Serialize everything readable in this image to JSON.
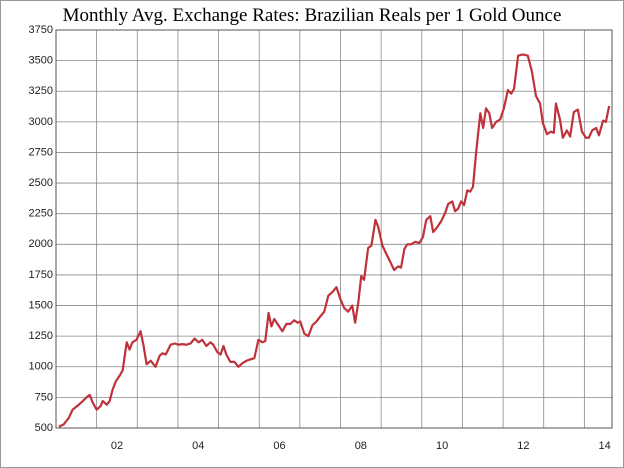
{
  "chart_data": {
    "type": "line",
    "title": "Monthly Avg. Exchange Rates: Brazilian Reals per 1 Gold Ounce",
    "x": [
      2001.07,
      2001.19,
      2001.31,
      2001.41,
      2001.56,
      2001.66,
      2001.75,
      2001.83,
      2001.9,
      2002.0,
      2002.1,
      2002.15,
      2002.25,
      2002.32,
      2002.39,
      2002.47,
      2002.57,
      2002.64,
      2002.74,
      2002.81,
      2002.88,
      2002.98,
      2003.08,
      2003.15,
      2003.23,
      2003.33,
      2003.45,
      2003.55,
      2003.62,
      2003.7,
      2003.82,
      2003.92,
      2004.01,
      2004.11,
      2004.21,
      2004.31,
      2004.41,
      2004.51,
      2004.6,
      2004.7,
      2004.8,
      2004.87,
      2004.97,
      2005.05,
      2005.12,
      2005.19,
      2005.29,
      2005.39,
      2005.49,
      2005.59,
      2005.69,
      2005.78,
      2005.88,
      2005.98,
      2006.08,
      2006.15,
      2006.23,
      2006.3,
      2006.37,
      2006.47,
      2006.57,
      2006.67,
      2006.77,
      2006.86,
      2006.94,
      2007.01,
      2007.11,
      2007.21,
      2007.31,
      2007.41,
      2007.5,
      2007.6,
      2007.7,
      2007.8,
      2007.9,
      2008.0,
      2008.09,
      2008.19,
      2008.29,
      2008.36,
      2008.44,
      2008.51,
      2008.58,
      2008.68,
      2008.76,
      2008.86,
      2008.93,
      2009.03,
      2009.13,
      2009.22,
      2009.32,
      2009.42,
      2009.49,
      2009.57,
      2009.64,
      2009.74,
      2009.84,
      2009.94,
      2010.03,
      2010.11,
      2010.21,
      2010.28,
      2010.38,
      2010.48,
      2010.58,
      2010.65,
      2010.75,
      2010.82,
      2010.89,
      2010.97,
      2011.04,
      2011.12,
      2011.19,
      2011.26,
      2011.34,
      2011.44,
      2011.51,
      2011.58,
      2011.66,
      2011.73,
      2011.83,
      2011.93,
      2012.02,
      2012.12,
      2012.2,
      2012.27,
      2012.37,
      2012.49,
      2012.61,
      2012.71,
      2012.81,
      2012.91,
      2012.98,
      2013.08,
      2013.18,
      2013.25,
      2013.3,
      2013.4,
      2013.47,
      2013.57,
      2013.65,
      2013.74,
      2013.84,
      2013.94,
      2014.04,
      2014.11,
      2014.19,
      2014.29,
      2014.36,
      2014.46,
      2014.53,
      2014.61
    ],
    "values": [
      510,
      530,
      580,
      650,
      690,
      720,
      750,
      770,
      710,
      650,
      680,
      720,
      690,
      720,
      810,
      880,
      930,
      970,
      1200,
      1140,
      1200,
      1220,
      1290,
      1180,
      1020,
      1050,
      1000,
      1090,
      1110,
      1100,
      1180,
      1190,
      1180,
      1185,
      1180,
      1190,
      1230,
      1200,
      1220,
      1170,
      1200,
      1180,
      1120,
      1100,
      1170,
      1100,
      1040,
      1040,
      1000,
      1030,
      1050,
      1060,
      1070,
      1220,
      1200,
      1210,
      1440,
      1330,
      1390,
      1340,
      1290,
      1350,
      1350,
      1380,
      1360,
      1370,
      1270,
      1250,
      1340,
      1370,
      1410,
      1450,
      1580,
      1610,
      1650,
      1550,
      1480,
      1450,
      1500,
      1360,
      1530,
      1740,
      1710,
      1970,
      1990,
      2200,
      2140,
      1990,
      1920,
      1860,
      1790,
      1820,
      1810,
      1960,
      2000,
      2000,
      2020,
      2010,
      2060,
      2200,
      2230,
      2100,
      2140,
      2190,
      2260,
      2330,
      2350,
      2270,
      2290,
      2350,
      2320,
      2440,
      2430,
      2470,
      2760,
      3070,
      2950,
      3110,
      3070,
      2950,
      3000,
      3020,
      3110,
      3260,
      3230,
      3270,
      3540,
      3550,
      3540,
      3410,
      3210,
      3150,
      2990,
      2900,
      2920,
      2910,
      3150,
      3020,
      2870,
      2930,
      2880,
      3080,
      3100,
      2920,
      2870,
      2870,
      2930,
      2950,
      2890,
      3010,
      3000,
      3130
    ],
    "color": "#c0323a",
    "xlim": [
      2001,
      2014.68
    ],
    "xticks": [
      {
        "value": 2002.5,
        "label": "02"
      },
      {
        "value": 2004.5,
        "label": "04"
      },
      {
        "value": 2006.5,
        "label": "06"
      },
      {
        "value": 2008.5,
        "label": "08"
      },
      {
        "value": 2010.5,
        "label": "10"
      },
      {
        "value": 2012.5,
        "label": "12"
      },
      {
        "value": 2014.5,
        "label": "14"
      }
    ],
    "xgrid": [
      2002,
      2003,
      2004,
      2005,
      2006,
      2007,
      2008,
      2009,
      2010,
      2011,
      2012,
      2013,
      2014
    ],
    "ylim": [
      500,
      3750
    ],
    "yticks": [
      500,
      750,
      1000,
      1250,
      1500,
      1750,
      2000,
      2250,
      2500,
      2750,
      3000,
      3250,
      3500,
      3750
    ],
    "grid": true
  }
}
